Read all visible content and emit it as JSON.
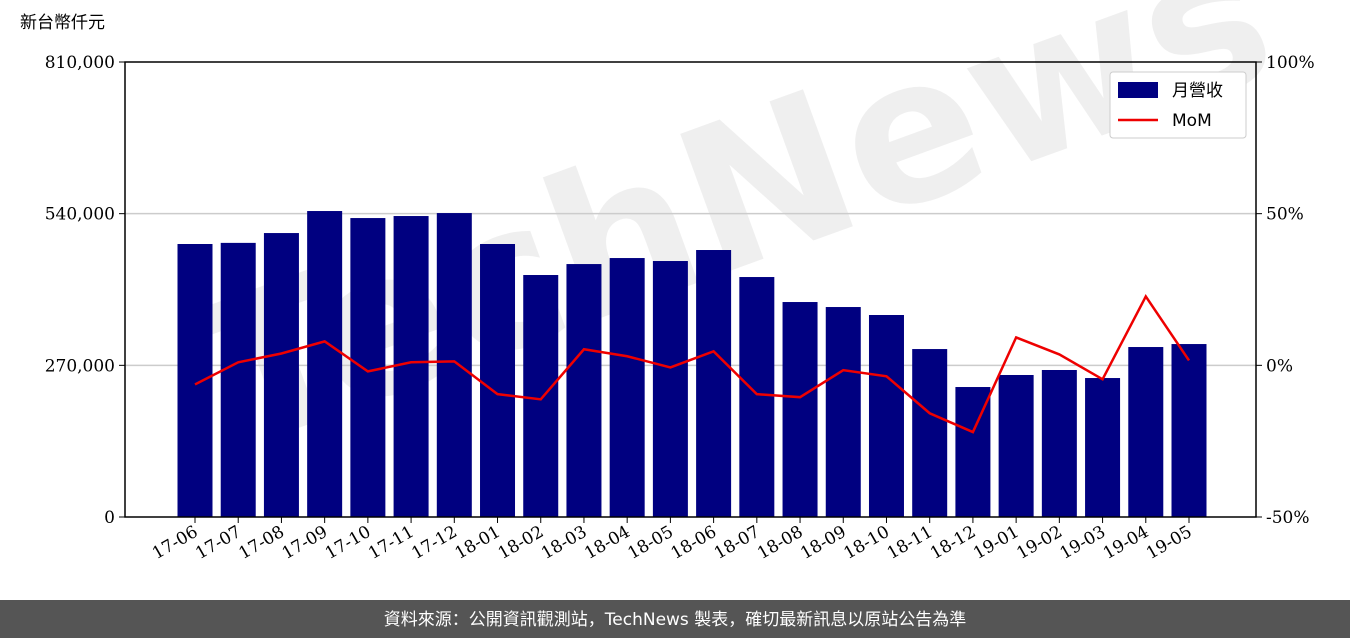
{
  "chart_data": {
    "type": "bar",
    "unit_label": "新台幣仟元",
    "watermark": "TechNews",
    "categories": [
      "17-06",
      "17-07",
      "17-08",
      "17-09",
      "17-10",
      "17-11",
      "17-12",
      "18-01",
      "18-02",
      "18-03",
      "18-04",
      "18-05",
      "18-06",
      "18-07",
      "18-08",
      "18-09",
      "18-10",
      "18-11",
      "18-12",
      "19-01",
      "19-02",
      "19-03",
      "19-04",
      "19-05"
    ],
    "series": [
      {
        "name": "月營收",
        "type": "bar",
        "color": "#000080",
        "values": [
          486000,
          488000,
          505500,
          544700,
          532200,
          535800,
          541100,
          486000,
          430800,
          450300,
          461000,
          455700,
          475300,
          427200,
          382700,
          373800,
          359600,
          299000,
          231400,
          252800,
          261700,
          247400,
          302600,
          307900
        ]
      },
      {
        "name": "MoM",
        "type": "line",
        "axis": "y2",
        "color": "#ee0000",
        "values": [
          -6.3,
          1.0,
          3.9,
          7.9,
          -2.0,
          1.0,
          1.3,
          -9.5,
          -11.2,
          5.3,
          3.0,
          -0.7,
          4.6,
          -9.5,
          -10.5,
          -1.6,
          -3.6,
          -15.8,
          -22.0,
          9.2,
          3.6,
          -4.6,
          22.7,
          1.6
        ]
      }
    ],
    "ylim": [
      0,
      810000
    ],
    "yticks": [
      0,
      {
        "value": 270000,
        "label": "270,000"
      },
      {
        "value": 540000,
        "label": "540,000"
      },
      {
        "value": 810000,
        "label": "810,000"
      }
    ],
    "y2lim": [
      -50,
      100
    ],
    "y2ticks": [
      {
        "value": -50,
        "label": "-50%"
      },
      {
        "value": 0,
        "label": "0%"
      },
      {
        "value": 50,
        "label": "50%"
      },
      {
        "value": 100,
        "label": "100%"
      }
    ],
    "grid": true,
    "legend": "upper right",
    "footer": "資料來源：公開資訊觀測站，TechNews 製表，確切最新訊息以原站公告為準"
  }
}
